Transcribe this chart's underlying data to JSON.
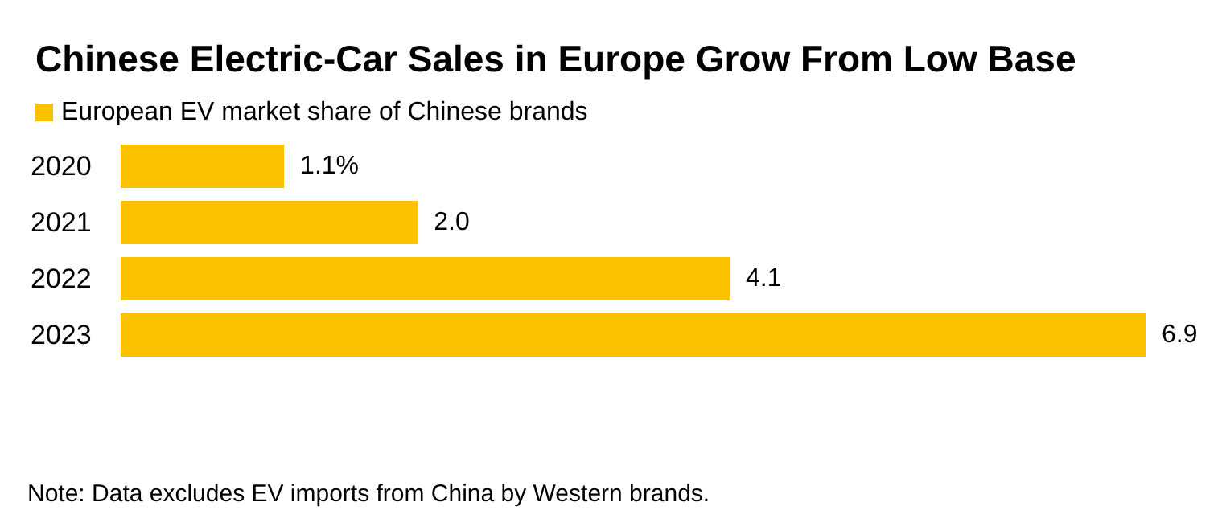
{
  "chart_data": {
    "type": "bar",
    "orientation": "horizontal",
    "title": "Chinese Electric-Car Sales in Europe Grow From Low Base",
    "categories": [
      "2020",
      "2021",
      "2022",
      "2023"
    ],
    "series": [
      {
        "name": "European EV market share of Chinese brands",
        "color": "#fcc100",
        "values": [
          1.1,
          2.0,
          4.1,
          6.9
        ],
        "value_labels": [
          "1.1%",
          "2.0",
          "4.1",
          "6.9"
        ]
      }
    ],
    "legend": "top left",
    "annotations": [
      "Note: Data excludes EV imports from China by Western brands."
    ]
  }
}
